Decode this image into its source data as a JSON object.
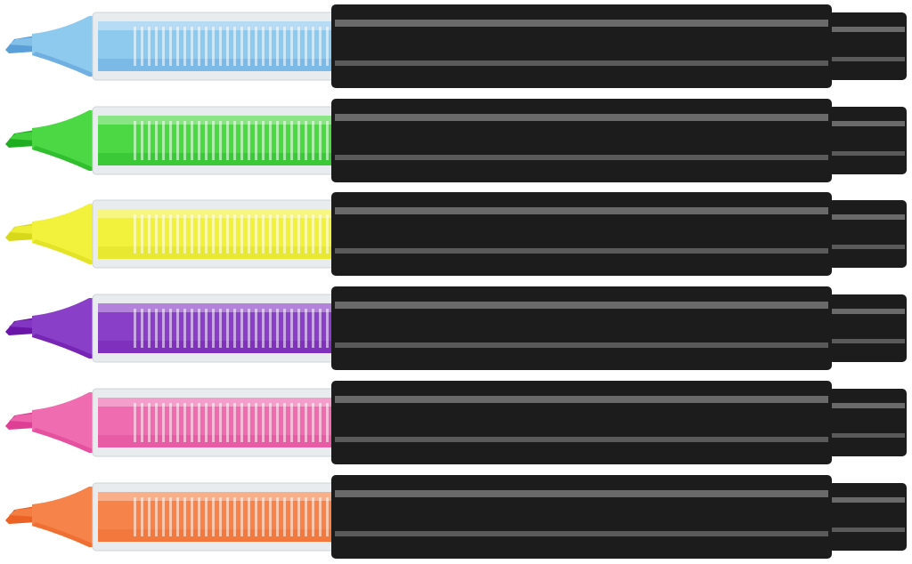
{
  "scene": {
    "subject": "highlighter-pens",
    "background": "#ffffff",
    "body_color": "#1c1c1c",
    "body_stripe_color": "#6a6a6a",
    "clear_barrel_color": "#e8ecee",
    "pens": [
      {
        "color_name": "blue",
        "ink": "#8ec9ee",
        "ink_dark": "#5a9fd8"
      },
      {
        "color_name": "green",
        "ink": "#4cd844",
        "ink_dark": "#1fae22"
      },
      {
        "color_name": "yellow",
        "ink": "#f2f23c",
        "ink_dark": "#d8d81a"
      },
      {
        "color_name": "purple",
        "ink": "#8a3fc8",
        "ink_dark": "#6a14a8"
      },
      {
        "color_name": "pink",
        "ink": "#ef6cb0",
        "ink_dark": "#de3f94"
      },
      {
        "color_name": "orange",
        "ink": "#f6844a",
        "ink_dark": "#ec6224"
      }
    ]
  }
}
